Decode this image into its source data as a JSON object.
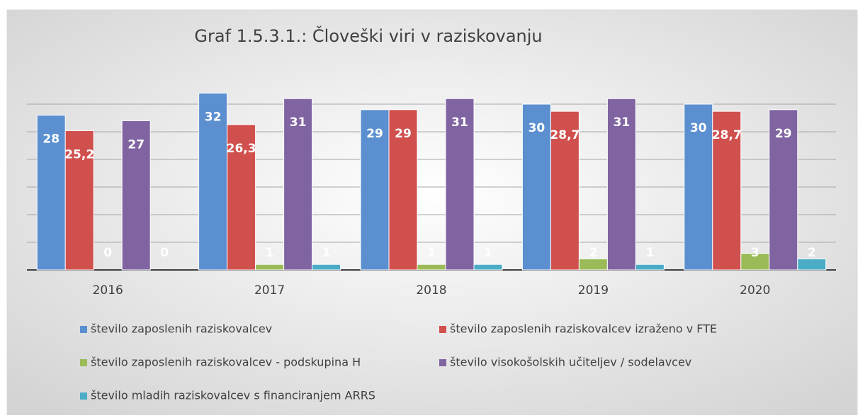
{
  "chart_data": {
    "type": "bar",
    "title": "Graf 1.5.3.1.: Človeški viri v raziskovanju",
    "categories": [
      "2016",
      "2017",
      "2018",
      "2019",
      "2020"
    ],
    "series": [
      {
        "name": "število zaposlenih raziskovalcev",
        "color": "#5b8fd0",
        "values": [
          28,
          32,
          29,
          30,
          30
        ]
      },
      {
        "name": "število zaposlenih raziskovalcev izraženo v FTE",
        "color": "#d0504e",
        "values": [
          25.2,
          26.3,
          29,
          28.7,
          28.7
        ],
        "value_labels": [
          "25,2",
          "26,3",
          "29",
          "28,7",
          "28,7"
        ]
      },
      {
        "name": "število zaposlenih raziskovalcev - podskupina H",
        "color": "#9bbb59",
        "values": [
          0,
          1,
          1,
          2,
          3
        ]
      },
      {
        "name": "število visokošolskih učiteljev / sodelavcev",
        "color": "#8064a2",
        "values": [
          27,
          31,
          31,
          31,
          29
        ]
      },
      {
        "name": "število mladih raziskovalcev s financiranjem ARRS",
        "color": "#4bacc6",
        "values": [
          0,
          1,
          1,
          1,
          2
        ]
      }
    ],
    "ylim": [
      0,
      35
    ],
    "yticks": [
      0,
      5,
      10,
      15,
      20,
      25,
      30
    ],
    "grid": true,
    "legend": "bottom"
  }
}
